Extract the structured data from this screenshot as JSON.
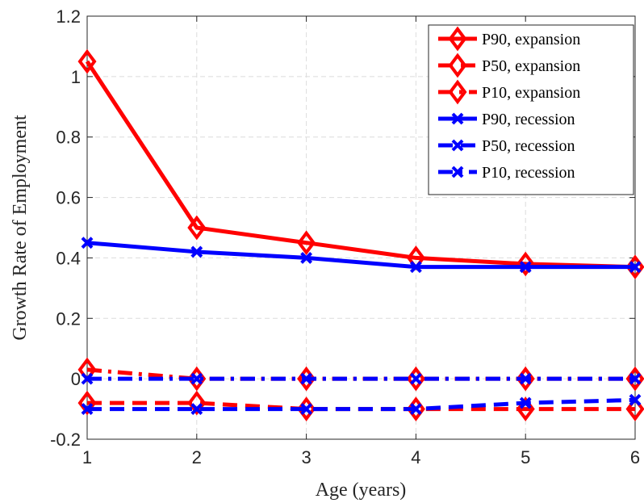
{
  "chart_data": {
    "type": "line",
    "x_label": "Age (years)",
    "y_label": "Growth Rate of Employment",
    "x": [
      1,
      2,
      3,
      4,
      5,
      6
    ],
    "xlim": [
      1,
      6
    ],
    "xticks": [
      1,
      2,
      3,
      4,
      5,
      6
    ],
    "ylim": [
      -0.2,
      1.2
    ],
    "yticks": [
      -0.2,
      0,
      0.2,
      0.4,
      0.6,
      0.8,
      1,
      1.2
    ],
    "grid": true,
    "legend_position": "upper right",
    "series": [
      {
        "name": "P90, expansion",
        "color": "#ff0000",
        "dash": "solid",
        "marker": "diamond",
        "values": [
          1.05,
          0.5,
          0.45,
          0.4,
          0.38,
          0.37
        ]
      },
      {
        "name": "P50, expansion",
        "color": "#ff0000",
        "dash": "dashed",
        "marker": "diamond",
        "values": [
          -0.08,
          -0.08,
          -0.1,
          -0.1,
          -0.1,
          -0.1
        ]
      },
      {
        "name": "P10, expansion",
        "color": "#ff0000",
        "dash": "dashdot",
        "marker": "diamond",
        "values": [
          0.03,
          0.0,
          0.0,
          0.0,
          0.0,
          0.0
        ]
      },
      {
        "name": "P90, recession",
        "color": "#0000ff",
        "dash": "solid",
        "marker": "x",
        "values": [
          0.45,
          0.42,
          0.4,
          0.37,
          0.37,
          0.37
        ]
      },
      {
        "name": "P50, recession",
        "color": "#0000ff",
        "dash": "dashed",
        "marker": "x",
        "values": [
          -0.1,
          -0.1,
          -0.1,
          -0.1,
          -0.08,
          -0.07
        ]
      },
      {
        "name": "P10, recession",
        "color": "#0000ff",
        "dash": "dashdot",
        "marker": "x",
        "values": [
          0.0,
          0.0,
          0.0,
          0.0,
          0.0,
          0.0
        ]
      }
    ]
  }
}
